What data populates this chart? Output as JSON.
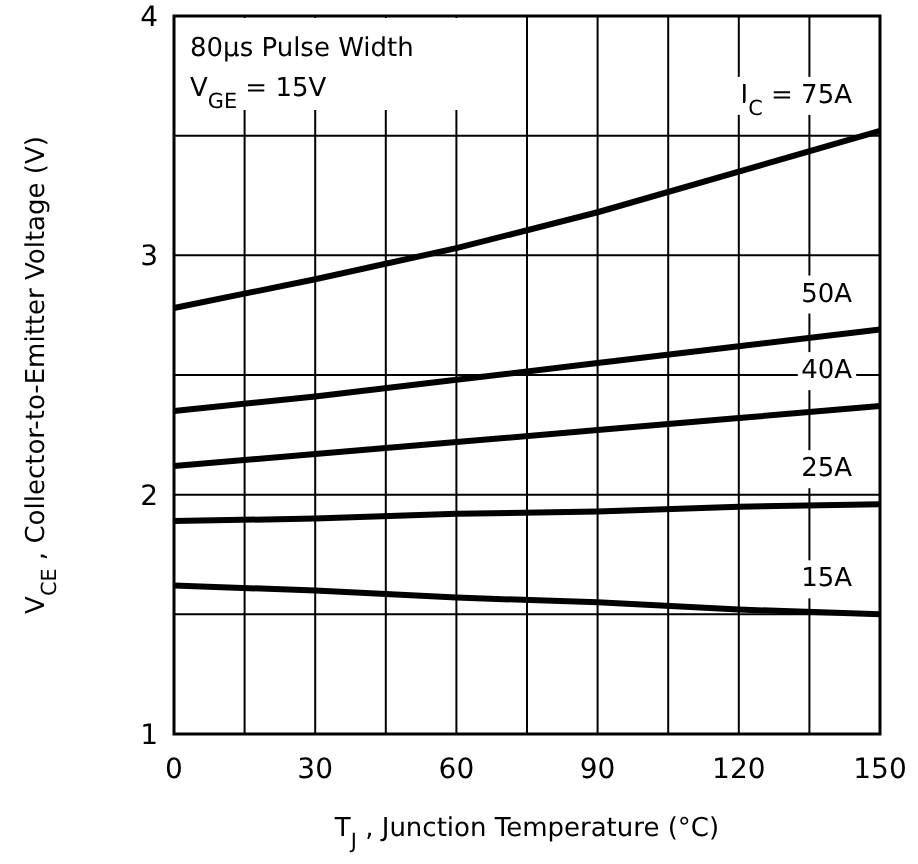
{
  "chart_data": {
    "type": "line",
    "xlabel": "T$_{J}$ , Junction Temperature (°C)",
    "ylabel": "V$_{CE}$ , Collector-to-Emitter Voltage (V)",
    "annotations": [
      "80µs Pulse Width",
      "V$_{GE}$ =  15V"
    ],
    "x": [
      0,
      30,
      60,
      90,
      120,
      150
    ],
    "series": [
      {
        "name": "I$_{C}$ =  75A",
        "color": "#000000",
        "values": [
          2.78,
          2.9,
          3.03,
          3.18,
          3.35,
          3.52
        ]
      },
      {
        "name": "50A",
        "color": "#000000",
        "values": [
          2.35,
          2.41,
          2.48,
          2.55,
          2.62,
          2.69
        ]
      },
      {
        "name": "40A",
        "color": "#000000",
        "values": [
          2.12,
          2.17,
          2.22,
          2.27,
          2.32,
          2.37
        ]
      },
      {
        "name": "25A",
        "color": "#000000",
        "values": [
          1.89,
          1.9,
          1.92,
          1.93,
          1.95,
          1.96
        ]
      },
      {
        "name": "15A",
        "color": "#000000",
        "values": [
          1.62,
          1.6,
          1.57,
          1.55,
          1.52,
          1.5
        ]
      }
    ],
    "xlim": [
      0,
      150
    ],
    "ylim": [
      1,
      4
    ],
    "xticks": [
      0,
      {
        "value": 15,
        "label": null
      },
      30,
      {
        "value": 45,
        "label": null
      },
      60,
      {
        "value": 75,
        "label": null
      },
      90,
      {
        "value": 105,
        "label": null
      },
      120,
      {
        "value": 135,
        "label": null
      },
      150
    ],
    "yticks": [
      1,
      {
        "value": 1.5,
        "label": null
      },
      2,
      {
        "value": 2.5,
        "label": null
      },
      3,
      {
        "value": 3.5,
        "label": null
      },
      4
    ],
    "grid": true,
    "legend": false,
    "marker": "none",
    "line_style": "solid"
  }
}
